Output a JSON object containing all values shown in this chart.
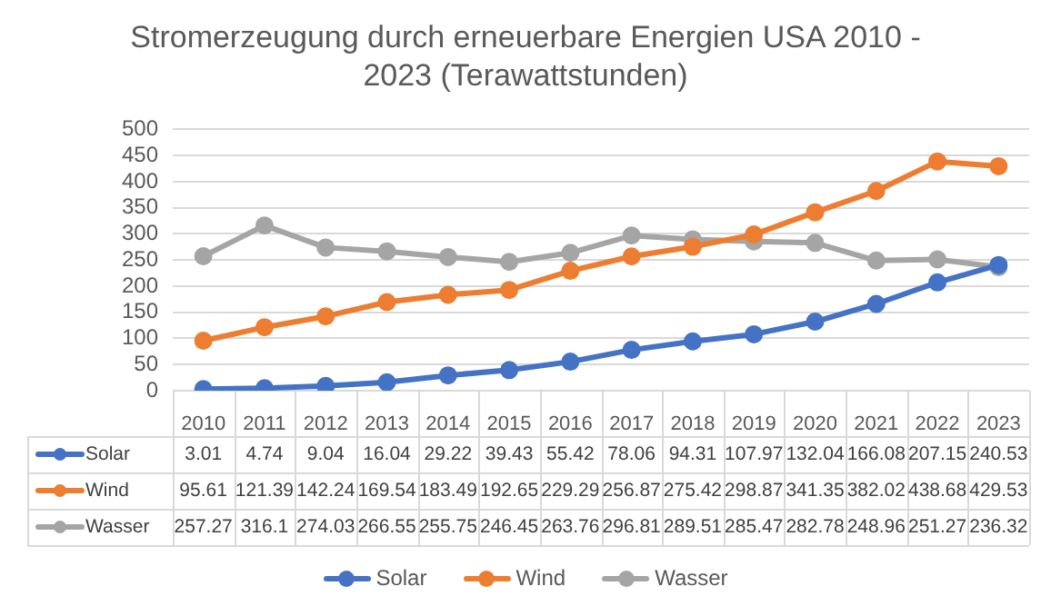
{
  "chart_data": {
    "type": "line",
    "title": "Stromerzeugung durch erneuerbare Energien USA 2010 - 2023 (Terawattstunden)",
    "categories": [
      "2010",
      "2011",
      "2012",
      "2013",
      "2014",
      "2015",
      "2016",
      "2017",
      "2018",
      "2019",
      "2020",
      "2021",
      "2022",
      "2023"
    ],
    "series": [
      {
        "name": "Solar",
        "color": "#4472c4",
        "values": [
          3.01,
          4.74,
          9.04,
          16.04,
          29.22,
          39.43,
          55.42,
          78.06,
          94.31,
          107.97,
          132.04,
          166.08,
          207.15,
          240.53
        ]
      },
      {
        "name": "Wind",
        "color": "#ed7d31",
        "values": [
          95.61,
          121.39,
          142.24,
          169.54,
          183.49,
          192.65,
          229.29,
          256.87,
          275.42,
          298.87,
          341.35,
          382.02,
          438.68,
          429.53
        ]
      },
      {
        "name": "Wasser",
        "color": "#a5a5a5",
        "values": [
          257.27,
          316.1,
          274.03,
          266.55,
          255.75,
          246.45,
          263.76,
          296.81,
          289.51,
          285.47,
          282.78,
          248.96,
          251.27,
          236.32
        ]
      }
    ],
    "ylim": [
      0,
      500
    ],
    "yticks": [
      0,
      50,
      100,
      150,
      200,
      250,
      300,
      350,
      400,
      450,
      500
    ],
    "grid": "y",
    "legend": "bottom",
    "marker": "circle",
    "line_style": "solid",
    "data_labels": true
  }
}
